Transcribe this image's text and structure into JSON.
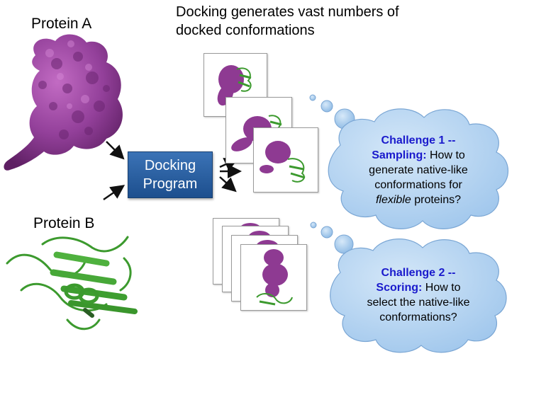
{
  "header": {
    "line1": "Docking generates vast numbers of",
    "line2": "docked conformations"
  },
  "protein_a": {
    "label": "Protein A"
  },
  "protein_b": {
    "label": "Protein B"
  },
  "docking_program": {
    "line1": "Docking",
    "line2": "Program"
  },
  "challenge1": {
    "title_a": "Challenge 1 --",
    "title_b": "Sampling:",
    "text_a": " How to",
    "text_b": "generate native-like",
    "text_c": "conformations for",
    "text_d_italic": "flexible",
    "text_d": " proteins?"
  },
  "challenge2": {
    "title_a": "Challenge 2 --",
    "title_b": "Scoring:",
    "text_a": " How to",
    "text_b": "select the native-like",
    "text_c": "conformations?"
  },
  "colors": {
    "protein_a": "#8e3a92",
    "protein_b": "#3c9a2e",
    "cloud": "#a9cdef",
    "box": "#2a5fa3",
    "challenge_title": "#1a1acc"
  }
}
